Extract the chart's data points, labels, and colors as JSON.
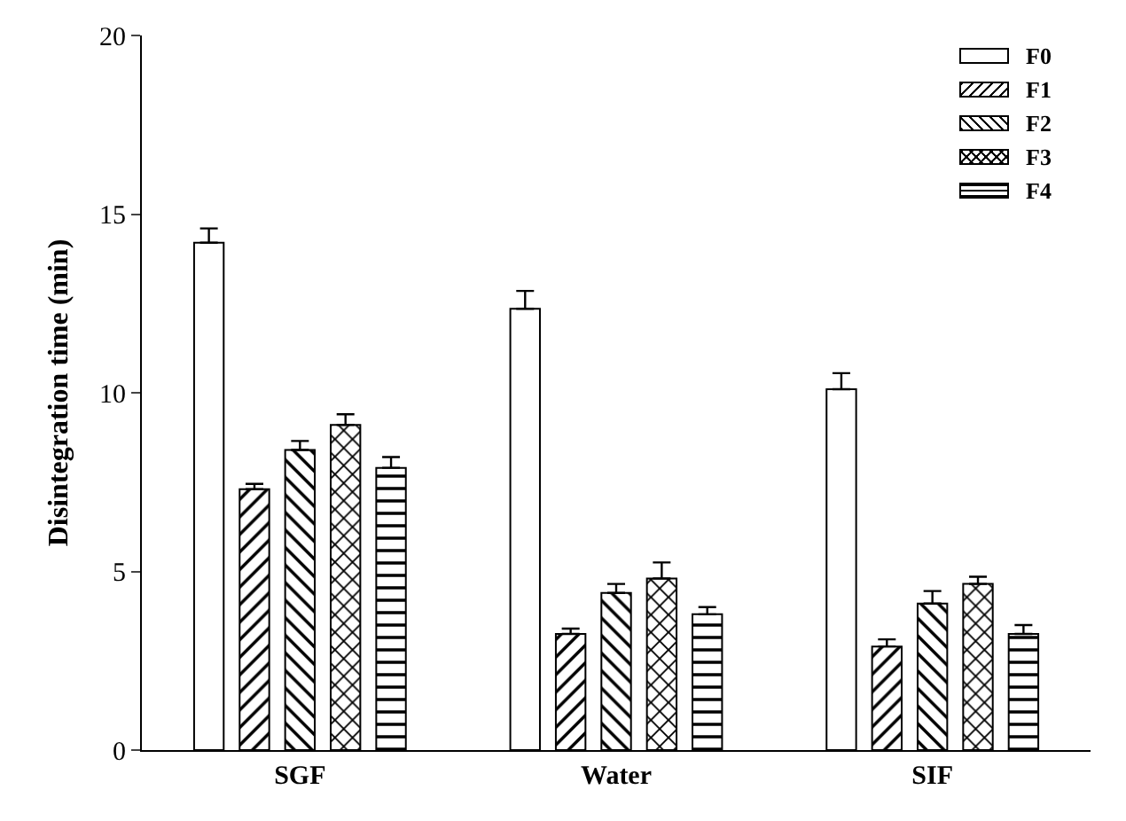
{
  "chart_data": {
    "type": "bar",
    "ylabel": "Disintegration time (min)",
    "categories": [
      "SGF",
      "Water",
      "SIF"
    ],
    "series": [
      {
        "name": "F0",
        "color": "#000000",
        "values": [
          14.2,
          12.35,
          10.1
        ],
        "errors": [
          0.4,
          0.5,
          0.45
        ]
      },
      {
        "name": "F1",
        "color": "#000000",
        "values": [
          7.3,
          3.25,
          2.9
        ],
        "errors": [
          0.15,
          0.15,
          0.2
        ]
      },
      {
        "name": "F2",
        "color": "#000000",
        "values": [
          8.4,
          4.4,
          4.1
        ],
        "errors": [
          0.25,
          0.25,
          0.35
        ]
      },
      {
        "name": "F3",
        "color": "#000000",
        "values": [
          9.1,
          4.8,
          4.65
        ],
        "errors": [
          0.3,
          0.45,
          0.2
        ]
      },
      {
        "name": "F4",
        "color": "#000000",
        "values": [
          7.9,
          3.8,
          3.25
        ],
        "errors": [
          0.3,
          0.2,
          0.25
        ]
      }
    ],
    "ylim": [
      0,
      20
    ],
    "yticks": [
      0,
      5,
      10,
      15,
      20
    ],
    "grid": false,
    "legend": "top right"
  }
}
